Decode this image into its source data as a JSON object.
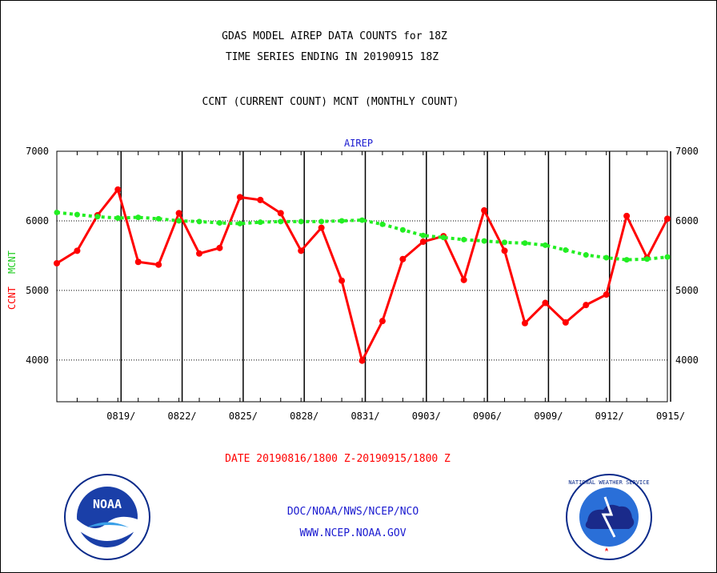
{
  "header": {
    "title1": "GDAS MODEL AIREP DATA COUNTS for 18Z",
    "title2": "TIME SERIES ENDING IN 20190915 18Z",
    "subtitle": "CCNT (CURRENT COUNT) MCNT (MONTHLY COUNT)"
  },
  "footer": {
    "date_range": "DATE 20190816/1800 Z-20190915/1800 Z",
    "org": "DOC/NOAA/NWS/NCEP/NCO",
    "url": "WWW.NCEP.NOAA.GOV",
    "noaa_logo_text": "NOAA",
    "nws_logo_text": "NATIONAL WEATHER SERVICE"
  },
  "chart_data": {
    "type": "line",
    "title": "AIREP",
    "ylabel_ccnt": "CCNT",
    "ylabel_mcnt": "MCNT",
    "ylim": [
      3400,
      7000
    ],
    "yticks": [
      4000,
      5000,
      6000,
      7000
    ],
    "grid": true,
    "x": [
      "0816",
      "0817",
      "0818",
      "0819",
      "0820",
      "0821",
      "0822",
      "0823",
      "0824",
      "0825",
      "0826",
      "0827",
      "0828",
      "0829",
      "0830",
      "0831",
      "0901",
      "0902",
      "0903",
      "0904",
      "0905",
      "0906",
      "0907",
      "0908",
      "0909",
      "0910",
      "0911",
      "0912",
      "0913",
      "0914",
      "0915"
    ],
    "xtick_labels": [
      "0819/",
      "0822/",
      "0825/",
      "0828/",
      "0831/",
      "0903/",
      "0906/",
      "0909/",
      "0912/",
      "0915/"
    ],
    "xtick_dates": [
      "0819",
      "0822",
      "0825",
      "0828",
      "0831",
      "0903",
      "0906",
      "0909",
      "0912",
      "0915"
    ],
    "series": [
      {
        "name": "CCNT",
        "color": "#ff0000",
        "style": "solid",
        "values": [
          5390,
          5570,
          6080,
          6450,
          5410,
          5370,
          6110,
          5530,
          5610,
          6340,
          6300,
          6110,
          5570,
          5900,
          5140,
          3990,
          4560,
          5450,
          5700,
          5780,
          5150,
          6150,
          5570,
          4530,
          4820,
          4540,
          4790,
          4940,
          6070,
          5470,
          6030
        ]
      },
      {
        "name": "MCNT",
        "color": "#22ee22",
        "style": "dashed",
        "values": [
          6120,
          6090,
          6060,
          6040,
          6050,
          6030,
          6000,
          5990,
          5970,
          5960,
          5980,
          5990,
          5990,
          5990,
          6000,
          6010,
          5950,
          5870,
          5790,
          5760,
          5730,
          5710,
          5690,
          5680,
          5650,
          5580,
          5510,
          5470,
          5440,
          5450,
          5480
        ]
      }
    ]
  }
}
